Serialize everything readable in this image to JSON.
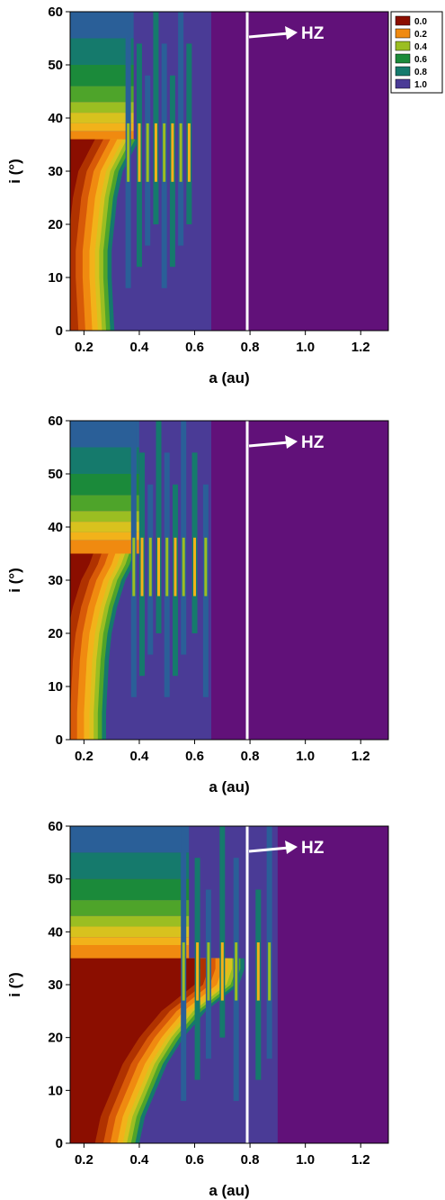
{
  "colors": {
    "levels": [
      "#8b0e00",
      "#b03200",
      "#d85a08",
      "#f08a10",
      "#f2b21a",
      "#d8c21e",
      "#9bbe22",
      "#4ea42a",
      "#1b8a3a",
      "#157a6c",
      "#2a5f98",
      "#4a3b96",
      "#611179"
    ],
    "legend": [
      "#8b0e00",
      "#f08a10",
      "#9bbe22",
      "#1b8a3a",
      "#157a6c",
      "#4a3b96"
    ],
    "background": "#611179"
  },
  "legend": {
    "labels": [
      "0.0",
      "0.2",
      "0.4",
      "0.6",
      "0.8",
      "1.0"
    ]
  },
  "chart_data": [
    {
      "type": "heatmap",
      "panel": 1,
      "xlabel": "a (au)",
      "ylabel": "i (°)",
      "xlim": [
        0.15,
        1.3
      ],
      "ylim": [
        0,
        60
      ],
      "xticks": [
        "0.2",
        "0.4",
        "0.6",
        "0.8",
        "1.0",
        "1.2"
      ],
      "yticks": [
        "0",
        "10",
        "20",
        "30",
        "40",
        "50",
        "60"
      ],
      "annotation": "HZ",
      "hz_boundary_a": 0.79,
      "colorbar_range": [
        0.0,
        1.0
      ],
      "stable_edge_a": [
        0.31,
        0.305,
        0.3,
        0.3,
        0.31,
        0.32,
        0.34,
        0.37,
        0.4
      ],
      "stable_edge_i": [
        0,
        5,
        10,
        15,
        20,
        25,
        30,
        33,
        36
      ],
      "resonance_a": [
        0.36,
        0.4,
        0.43,
        0.46,
        0.49,
        0.52,
        0.55,
        0.58
      ],
      "unstable_edge_a": 0.66,
      "plateau_i": 36
    },
    {
      "type": "heatmap",
      "panel": 2,
      "xlabel": "a (au)",
      "ylabel": "i (°)",
      "xlim": [
        0.15,
        1.3
      ],
      "ylim": [
        0,
        60
      ],
      "xticks": [
        "0.2",
        "0.4",
        "0.6",
        "0.8",
        "1.0",
        "1.2"
      ],
      "yticks": [
        "0",
        "10",
        "20",
        "30",
        "40",
        "50",
        "60"
      ],
      "annotation": "HZ",
      "hz_boundary_a": 0.79,
      "colorbar_range": [
        0.0,
        1.0
      ],
      "stable_edge_a": [
        0.28,
        0.28,
        0.285,
        0.29,
        0.3,
        0.32,
        0.35,
        0.38,
        0.4
      ],
      "stable_edge_i": [
        0,
        5,
        10,
        15,
        20,
        25,
        30,
        33,
        36
      ],
      "resonance_a": [
        0.38,
        0.41,
        0.44,
        0.47,
        0.5,
        0.53,
        0.56,
        0.6,
        0.64
      ],
      "unstable_edge_a": 0.66,
      "plateau_i": 35
    },
    {
      "type": "heatmap",
      "panel": 3,
      "xlabel": "a (au)",
      "ylabel": "i (°)",
      "xlim": [
        0.15,
        1.3
      ],
      "ylim": [
        0,
        60
      ],
      "xticks": [
        "0.2",
        "0.4",
        "0.6",
        "0.8",
        "1.0",
        "1.2"
      ],
      "yticks": [
        "0",
        "10",
        "20",
        "30",
        "40",
        "50",
        "60"
      ],
      "annotation": "HZ",
      "hz_boundary_a": 0.79,
      "colorbar_range": [
        0.0,
        1.0
      ],
      "stable_edge_a": [
        0.4,
        0.42,
        0.46,
        0.5,
        0.56,
        0.64,
        0.76,
        0.78,
        0.78
      ],
      "stable_edge_i": [
        0,
        5,
        10,
        15,
        20,
        25,
        30,
        33,
        36
      ],
      "resonance_a": [
        0.56,
        0.61,
        0.65,
        0.7,
        0.75,
        0.83,
        0.87
      ],
      "unstable_edge_a": 0.9,
      "plateau_i": 35
    }
  ]
}
